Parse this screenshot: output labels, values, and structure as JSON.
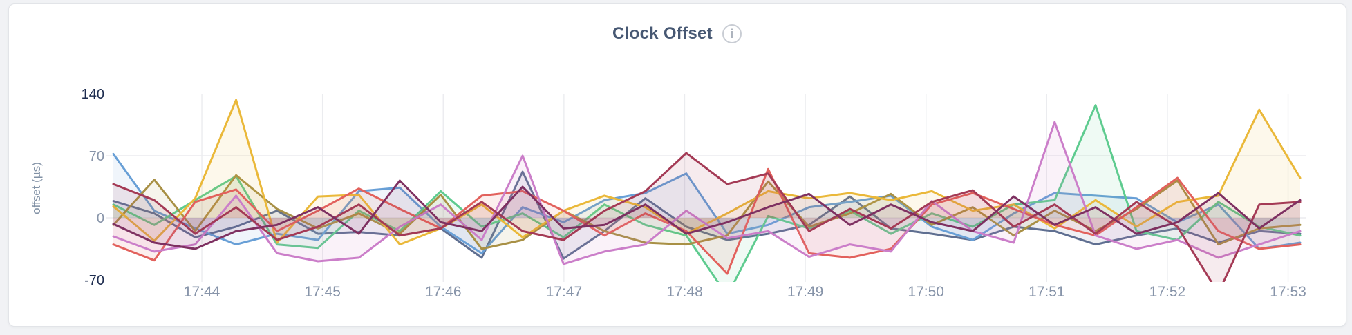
{
  "card": {
    "info_icon_glyph": "i"
  },
  "chart_data": {
    "type": "line",
    "title": "Clock Offset",
    "ylabel": "offset (µs)",
    "ylim": [
      -70,
      140
    ],
    "y_ticks": [
      {
        "label": "140",
        "value": 140,
        "emphasized": true
      },
      {
        "label": "70",
        "value": 70,
        "emphasized": false
      },
      {
        "label": "0",
        "value": 0,
        "emphasized": false
      },
      {
        "label": "-70",
        "value": -70,
        "emphasized": true
      }
    ],
    "y_gridlines": [
      70,
      0
    ],
    "x_start": "17:43:16",
    "x_end": "17:53:06",
    "x_ticks": [
      {
        "label": "17:44",
        "time": "17:44:00"
      },
      {
        "label": "17:45",
        "time": "17:45:00"
      },
      {
        "label": "17:46",
        "time": "17:46:00"
      },
      {
        "label": "17:47",
        "time": "17:47:00"
      },
      {
        "label": "17:48",
        "time": "17:48:00"
      },
      {
        "label": "17:49",
        "time": "17:49:00"
      },
      {
        "label": "17:50",
        "time": "17:50:00"
      },
      {
        "label": "17:51",
        "time": "17:51:00"
      },
      {
        "label": "17:52",
        "time": "17:52:00"
      },
      {
        "label": "17:53",
        "time": "17:53:00"
      }
    ],
    "grid": true,
    "legend": "none",
    "area_fill_opacity": 0.1,
    "points_evenly_spaced": true,
    "series": [
      {
        "name": "slate",
        "color": "#5f6f91",
        "values": [
          19,
          5,
          -22,
          -10,
          8,
          -18,
          -16,
          -20,
          -12,
          -45,
          52,
          -46,
          -15,
          22,
          -10,
          -25,
          -18,
          -8,
          24,
          -12,
          -18,
          -25,
          -10,
          -15,
          -30,
          -20,
          -12,
          -28,
          -15,
          -18
        ]
      },
      {
        "name": "blue",
        "color": "#689fd6",
        "values": [
          72,
          8,
          -12,
          -30,
          -18,
          -25,
          30,
          34,
          -10,
          -40,
          12,
          -5,
          20,
          28,
          50,
          -18,
          -8,
          12,
          18,
          25,
          -10,
          -25,
          5,
          28,
          25,
          22,
          -5,
          15,
          -35,
          -28
        ]
      },
      {
        "name": "green",
        "color": "#5ecb8f",
        "values": [
          15,
          -8,
          20,
          47,
          -30,
          -34,
          8,
          -15,
          30,
          -10,
          5,
          -22,
          15,
          -8,
          -20,
          -88,
          2,
          -12,
          8,
          -18,
          5,
          -10,
          15,
          20,
          127,
          -15,
          -25,
          18,
          -10,
          -20
        ]
      },
      {
        "name": "khaki",
        "color": "#a89045",
        "values": [
          -8,
          43,
          -15,
          48,
          10,
          -12,
          5,
          -18,
          26,
          -35,
          -25,
          8,
          -15,
          -28,
          -30,
          -20,
          41,
          -10,
          5,
          27,
          -8,
          12,
          -20,
          8,
          -15,
          10,
          42,
          -30,
          -12,
          -8
        ]
      },
      {
        "name": "gold",
        "color": "#eab839",
        "values": [
          13,
          -26,
          22,
          133,
          -28,
          24,
          26,
          -30,
          -12,
          15,
          -22,
          8,
          25,
          12,
          -18,
          5,
          30,
          22,
          28,
          20,
          30,
          8,
          15,
          -12,
          20,
          -10,
          18,
          25,
          122,
          45
        ]
      },
      {
        "name": "red",
        "color": "#e2615c",
        "values": [
          -30,
          -48,
          18,
          32,
          -15,
          8,
          33,
          10,
          -12,
          25,
          30,
          8,
          -20,
          5,
          -15,
          -63,
          55,
          -40,
          -45,
          -35,
          15,
          28,
          10,
          -8,
          -20,
          12,
          45,
          -15,
          -35,
          -30
        ]
      },
      {
        "name": "orchid",
        "color": "#cb7ec9",
        "values": [
          -21,
          -38,
          -30,
          25,
          -40,
          -49,
          -45,
          -10,
          15,
          -25,
          70,
          -52,
          -38,
          -30,
          8,
          -23,
          -15,
          -44,
          -30,
          -38,
          19,
          -15,
          -28,
          108,
          -20,
          -35,
          -25,
          -45,
          -30,
          -15
        ]
      },
      {
        "name": "maroon",
        "color": "#a43a55",
        "values": [
          38,
          20,
          -18,
          12,
          -25,
          -10,
          15,
          -20,
          -12,
          18,
          -15,
          -25,
          8,
          30,
          73,
          38,
          50,
          -15,
          10,
          -12,
          18,
          31,
          -10,
          15,
          -18,
          18,
          -10,
          -85,
          15,
          18
        ]
      },
      {
        "name": "plum",
        "color": "#7e3061",
        "values": [
          -7,
          -28,
          -35,
          -15,
          -8,
          12,
          -18,
          42,
          -5,
          -15,
          35,
          -12,
          -8,
          15,
          -18,
          -5,
          12,
          27,
          -8,
          15,
          -5,
          -15,
          24,
          -8,
          12,
          -18,
          -5,
          28,
          -12,
          20
        ]
      }
    ]
  }
}
